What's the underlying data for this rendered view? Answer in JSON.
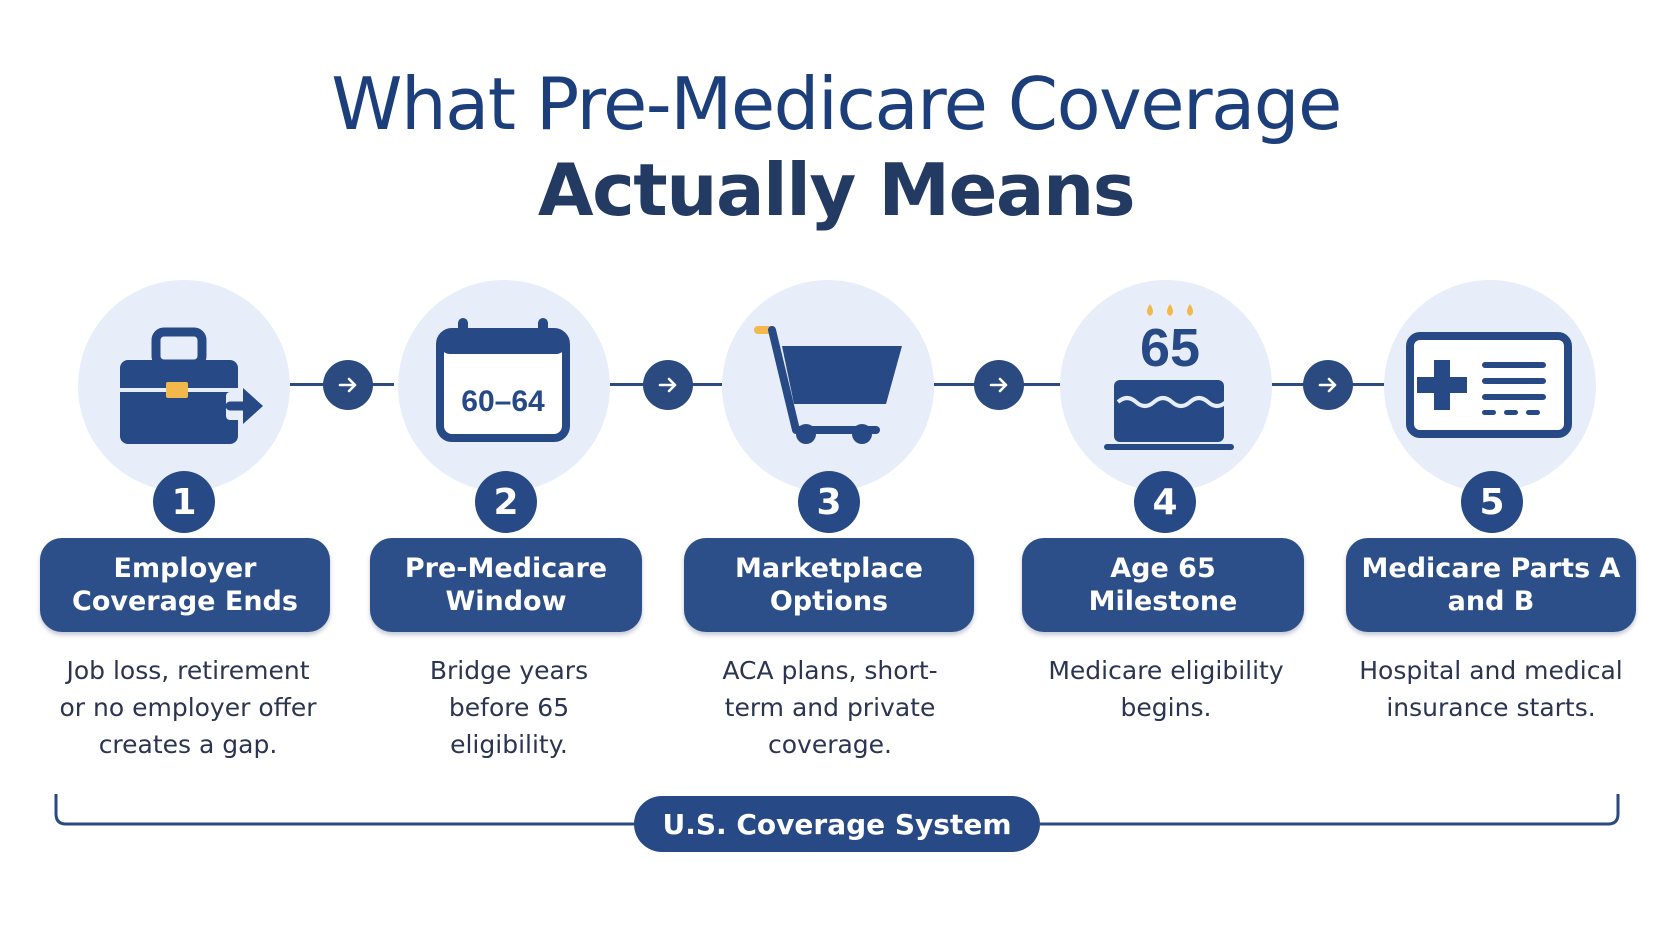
{
  "title": {
    "line1": "What Pre-Medicare Coverage",
    "line2": "Actually Means"
  },
  "steps": [
    {
      "number": "1",
      "label": "Employer Coverage Ends",
      "description": "Job loss, retirement or no employer offer creates a gap.",
      "icon": "briefcase-exit-icon"
    },
    {
      "number": "2",
      "label": "Pre-Medicare Window",
      "description": "Bridge years before 65 eligibility.",
      "icon": "calendar-icon",
      "icon_text": "60–64"
    },
    {
      "number": "3",
      "label": "Marketplace Options",
      "description": "ACA plans, short-term and private coverage.",
      "icon": "shopping-cart-icon"
    },
    {
      "number": "4",
      "label": "Age 65 Milestone",
      "description": "Medicare eligibility begins.",
      "icon": "birthday-cake-icon",
      "icon_text": "65"
    },
    {
      "number": "5",
      "label": "Medicare Parts A and B",
      "description": "Hospital and medical insurance starts.",
      "icon": "insurance-card-icon"
    }
  ],
  "footer": {
    "label": "U.S. Coverage System"
  },
  "colors": {
    "primary": "#2c4f8a",
    "circle_bg": "#e7eef9",
    "accent": "#f2b84b",
    "title": "#1c3f7c"
  }
}
